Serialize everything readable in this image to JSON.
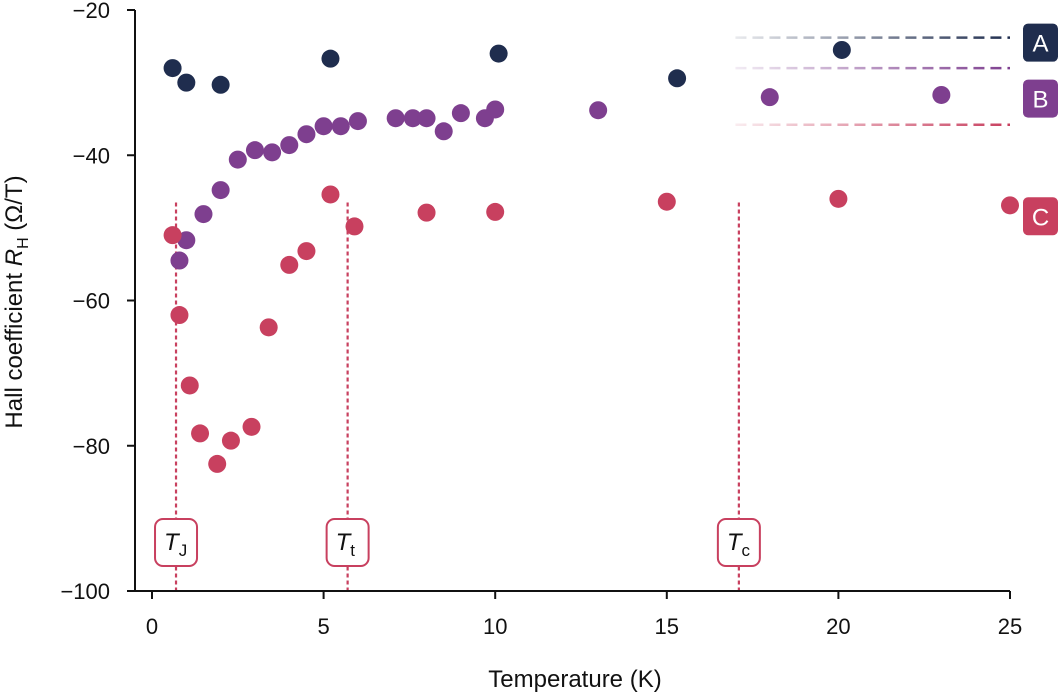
{
  "chart_data": {
    "type": "scatter",
    "xlabel": "Temperature (K)",
    "ylabel": "Hall coefficient R_H (Ω/T)",
    "ylabel_parts": {
      "prefix": "Hall coefficient ",
      "symbol": "R",
      "sub": "H",
      "unit": " (Ω/T)"
    },
    "xlim": [
      0,
      25
    ],
    "ylim": [
      -100,
      -20
    ],
    "x_ticks": [
      0,
      5,
      10,
      15,
      20,
      25
    ],
    "y_ticks": [
      -100,
      -80,
      -60,
      -40,
      -20
    ],
    "x_tick_labels": [
      "0",
      "5",
      "10",
      "15",
      "20",
      "25"
    ],
    "y_tick_labels": [
      "−100",
      "−80",
      "−60",
      "−40",
      "−20"
    ],
    "grid": false,
    "legend": "right",
    "series": [
      {
        "name": "A",
        "color": "#1f2d4e",
        "reference_y": -23.8,
        "x": [
          0.6,
          1.0,
          2.0,
          5.2,
          10.1,
          15.3,
          20.1
        ],
        "y": [
          -28.0,
          -30.0,
          -30.3,
          -26.7,
          -26.0,
          -29.4,
          -25.5
        ]
      },
      {
        "name": "B",
        "color": "#7e3f8f",
        "reference_y": -28.0,
        "x": [
          0.8,
          1.0,
          1.5,
          2.0,
          2.5,
          3.0,
          3.5,
          4.0,
          4.5,
          5.0,
          5.5,
          6.0,
          7.1,
          7.6,
          8.0,
          8.5,
          9.0,
          9.7,
          10.0,
          13.0,
          18.0,
          23.0
        ],
        "y": [
          -54.5,
          -51.7,
          -48.1,
          -44.8,
          -40.6,
          -39.3,
          -39.6,
          -38.6,
          -37.1,
          -36.0,
          -36.0,
          -35.3,
          -34.9,
          -34.9,
          -34.9,
          -36.7,
          -34.2,
          -34.9,
          -33.7,
          -33.8,
          -32.0,
          -31.7
        ]
      },
      {
        "name": "C",
        "color": "#c8405f",
        "reference_y": -35.8,
        "x": [
          0.6,
          0.8,
          1.1,
          1.4,
          1.9,
          2.3,
          2.9,
          3.4,
          4.0,
          4.5,
          5.2,
          5.9,
          8.0,
          10.0,
          15.0,
          20.0,
          25.0
        ],
        "y": [
          -51.0,
          -62.0,
          -71.7,
          -78.3,
          -82.5,
          -79.3,
          -77.4,
          -63.7,
          -55.1,
          -53.2,
          -45.4,
          -49.8,
          -47.9,
          -47.8,
          -46.4,
          -46.0,
          -46.9
        ]
      }
    ],
    "markers": [
      {
        "symbol": "T",
        "sub": "J",
        "x": 0.7
      },
      {
        "symbol": "T",
        "sub": "t",
        "x": 5.7
      },
      {
        "symbol": "T",
        "sub": "c",
        "x": 17.1
      }
    ],
    "marker_line_y_top": -46.5,
    "reference_x_start": 17.0,
    "label_positions_y": {
      "A": -24.5,
      "B": -32.2,
      "C": -48.4
    }
  }
}
